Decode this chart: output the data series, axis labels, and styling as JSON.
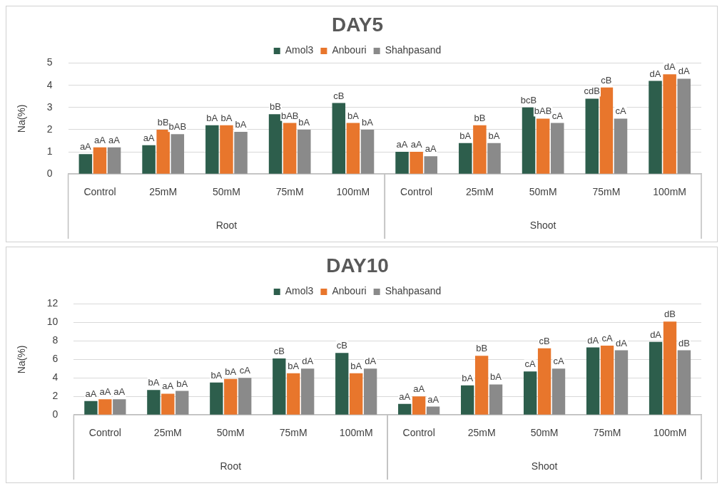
{
  "chart_data": [
    {
      "type": "bar",
      "title": "DAY5",
      "ylabel": "Na(%)",
      "categories": [
        "Control",
        "25mM",
        "50mM",
        "75mM",
        "100mM",
        "Control",
        "25mM",
        "50mM",
        "75mM",
        "100mM"
      ],
      "annotations": [
        "Root",
        "Shoot"
      ],
      "ylim": [
        0,
        5
      ],
      "yticks": [
        0,
        1,
        2,
        3,
        4,
        5
      ],
      "grid": "y",
      "legend": "top",
      "series": [
        {
          "name": "Amol3",
          "color": "#2d5e4c",
          "values": [
            0.9,
            1.3,
            2.2,
            2.7,
            3.2,
            1.0,
            1.4,
            3.0,
            3.4,
            4.2
          ],
          "value_labels": [
            "aA",
            "aA",
            "bA",
            "bB",
            "cB",
            "aA",
            "bA",
            "bcB",
            "cdB",
            "dA"
          ]
        },
        {
          "name": "Anbouri",
          "color": "#e8762c",
          "values": [
            1.2,
            2.0,
            2.2,
            2.3,
            2.3,
            1.0,
            2.2,
            2.5,
            3.9,
            4.5
          ],
          "value_labels": [
            "aA",
            "bB",
            "bA",
            "bAB",
            "bA",
            "aA",
            "bB",
            "bAB",
            "cB",
            "dA"
          ]
        },
        {
          "name": "Shahpasand",
          "color": "#8a8a8a",
          "values": [
            1.2,
            1.8,
            1.9,
            2.0,
            2.0,
            0.8,
            1.4,
            2.3,
            2.5,
            4.3
          ],
          "value_labels": [
            "aA",
            "bAB",
            "bA",
            "bA",
            "bA",
            "aA",
            "bA",
            "cA",
            "cA",
            "dA"
          ]
        }
      ]
    },
    {
      "type": "bar",
      "title": "DAY10",
      "ylabel": "Na(%)",
      "categories": [
        "Control",
        "25mM",
        "50mM",
        "75mM",
        "100mM",
        "Control",
        "25mM",
        "50mM",
        "75mM",
        "100mM"
      ],
      "annotations": [
        "Root",
        "Shoot"
      ],
      "ylim": [
        0,
        12
      ],
      "yticks": [
        0,
        2,
        4,
        6,
        8,
        10,
        12
      ],
      "grid": "y",
      "legend": "top",
      "series": [
        {
          "name": "Amol3",
          "color": "#2d5e4c",
          "values": [
            1.5,
            2.7,
            3.5,
            6.1,
            6.7,
            1.2,
            3.2,
            4.7,
            7.3,
            7.9
          ],
          "value_labels": [
            "aA",
            "bA",
            "bA",
            "cB",
            "cB",
            "aA",
            "bA",
            "cA",
            "dA",
            "dA"
          ]
        },
        {
          "name": "Anbouri",
          "color": "#e8762c",
          "values": [
            1.7,
            2.3,
            3.9,
            4.5,
            4.5,
            2.0,
            6.4,
            7.2,
            7.5,
            10.1
          ],
          "value_labels": [
            "aA",
            "aA",
            "bA",
            "bA",
            "bA",
            "aA",
            "bB",
            "cB",
            "cA",
            "dB"
          ]
        },
        {
          "name": "Shahpasand",
          "color": "#8a8a8a",
          "values": [
            1.7,
            2.6,
            4.0,
            5.0,
            5.0,
            0.9,
            3.3,
            5.0,
            7.0,
            7.0
          ],
          "value_labels": [
            "aA",
            "bA",
            "cA",
            "dA",
            "dA",
            "aA",
            "bA",
            "cA",
            "dA",
            "dB"
          ]
        }
      ]
    }
  ]
}
